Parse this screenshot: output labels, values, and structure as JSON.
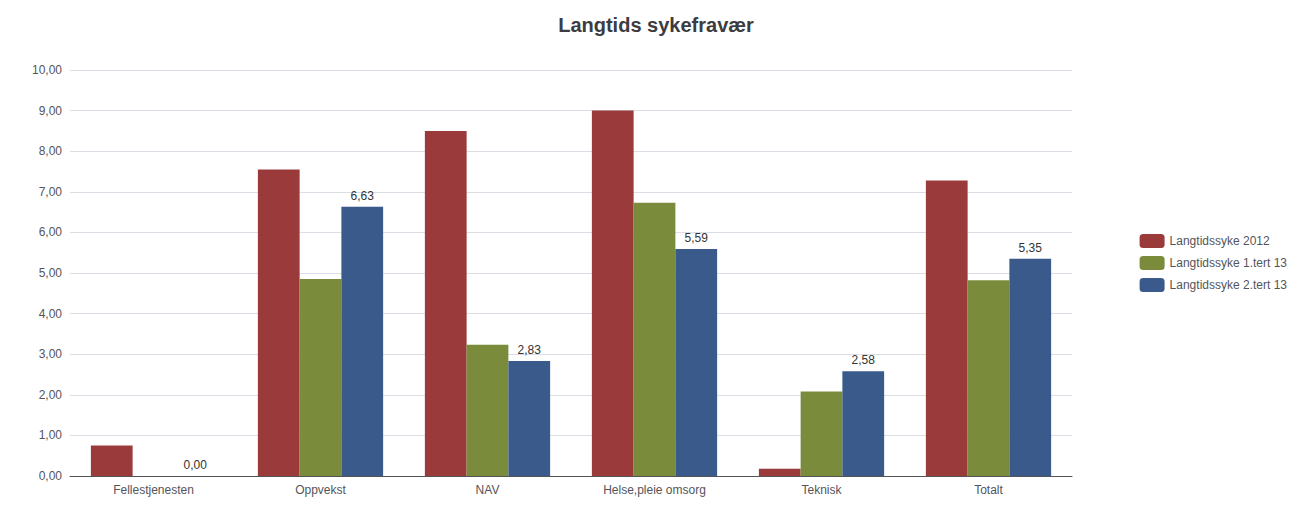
{
  "chart_data": {
    "type": "bar",
    "title": "Langtids sykefravær",
    "categories": [
      "Fellestjenesten",
      "Oppvekst",
      "NAV",
      "Helse,pleie omsorg",
      "Teknisk",
      "Totalt"
    ],
    "series": [
      {
        "name": "Langtidssyke 2012",
        "color": "#9b3a3a",
        "values": [
          0.75,
          7.55,
          8.5,
          9.0,
          0.18,
          7.28
        ]
      },
      {
        "name": "Langtidssyke 1.tert 13",
        "color": "#7a8c3b",
        "values": [
          null,
          4.85,
          3.23,
          6.73,
          2.08,
          4.82
        ]
      },
      {
        "name": "Langtidssyke 2.tert 13",
        "color": "#3b5a8c",
        "values": [
          0.0,
          6.63,
          2.83,
          5.59,
          2.58,
          5.35
        ],
        "value_labels": [
          "0,00",
          "6,63",
          "2,83",
          "5,59",
          "2,58",
          "5,35"
        ]
      }
    ],
    "ylim": [
      0,
      10.0
    ],
    "yticks": [
      {
        "value": 0.0,
        "label": "0,00"
      },
      {
        "value": 1.0,
        "label": "1,00"
      },
      {
        "value": 2.0,
        "label": "2,00"
      },
      {
        "value": 3.0,
        "label": "3,00"
      },
      {
        "value": 4.0,
        "label": "4,00"
      },
      {
        "value": 5.0,
        "label": "5,00"
      },
      {
        "value": 6.0,
        "label": "6,00"
      },
      {
        "value": 7.0,
        "label": "7,00"
      },
      {
        "value": 8.0,
        "label": "8,00"
      },
      {
        "value": 9.0,
        "label": "9,00"
      },
      {
        "value": 10.0,
        "label": "10,00"
      }
    ],
    "grid": true,
    "legend": "right"
  }
}
